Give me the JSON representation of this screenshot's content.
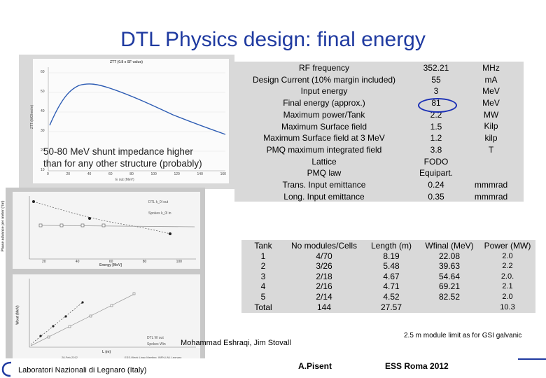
{
  "slide": {
    "title": "DTL Physics design: final energy",
    "note": "50-80 MeV shunt impedance higher than for any other structure (probably)",
    "authors": "Mohammad Eshraqi, Jim Stovall",
    "module_note": "2.5 m module limit as for GSI galvanic",
    "footer": {
      "lab": "Laboratori Nazionali di Legnaro (Italy)",
      "speaker": "A.Pisent",
      "event": "ESS Roma 2012"
    }
  },
  "plot_top": {
    "title": "ZTT (0.8 x SF value)",
    "ylabel": "ZTT (MOhm/m)",
    "xlabel": "E out (MeV)",
    "yticks": [
      "60",
      "50",
      "40",
      "30",
      "20",
      "10"
    ],
    "xticks": [
      "0",
      "20",
      "40",
      "60",
      "80",
      "100",
      "120",
      "140",
      "160"
    ]
  },
  "plot_bottom": {
    "upper": {
      "ylabel": "Phase advance per meter (°/m)",
      "xlabel": "Energy [MeV]",
      "xticks": [
        "20",
        "40",
        "60",
        "80",
        "100"
      ],
      "legend": [
        "DTL k_0l out",
        "Spokes k_0l in"
      ]
    },
    "lower": {
      "ylabel": "Wout (MeV)",
      "xlabel": "L (m)",
      "legend": [
        "DTL W out",
        "Spokes Win"
      ],
      "date": "28-Feb-2012",
      "meeting": "ESS-Week Linac Meeting, INFN-LNL Legnaro"
    }
  },
  "params": {
    "rows": [
      {
        "name": "RF frequency",
        "value": "352.21",
        "unit": "MHz"
      },
      {
        "name": "Design Current (10% margin included)",
        "value": "55",
        "unit": "mA"
      },
      {
        "name": "Input energy",
        "value": "3",
        "unit": "MeV"
      },
      {
        "name": "Final energy (approx.)",
        "value": "81",
        "unit": "MeV"
      },
      {
        "name": "Maximum power/Tank",
        "value": "2.2",
        "unit": "MW"
      },
      {
        "name": "Maximum Surface field",
        "value": "1.5",
        "unit": "Kilp"
      },
      {
        "name": "Maximum Surface field at 3 MeV",
        "value": "1.2",
        "unit": "kilp"
      },
      {
        "name": "PMQ maximum integrated field",
        "value": "3.8",
        "unit": "T"
      },
      {
        "name": "Lattice",
        "value": "FODO",
        "unit": ""
      },
      {
        "name": "PMQ law",
        "value": "Equipart.",
        "unit": ""
      },
      {
        "name": "Trans. Input emittance",
        "value": "0.24",
        "unit": "mmmrad"
      },
      {
        "name": "Long. Input emittance",
        "value": "0.35",
        "unit": "mmmrad"
      }
    ]
  },
  "tanks": {
    "headers": [
      "Tank",
      "No modules/Cells",
      "Length (m)",
      "Wfinal (MeV)",
      "Power (MW)"
    ],
    "tank": [
      "1",
      "2",
      "3",
      "4",
      "5",
      "Total"
    ],
    "modules": [
      "4/70",
      "3/26",
      "2/18",
      "2/16",
      "2/14",
      "144"
    ],
    "length": [
      "8.19",
      "5.48",
      "4.67",
      "4.71",
      "4.52",
      "27.57"
    ],
    "wfinal": [
      "22.08",
      "39.63",
      "54.64",
      "69.21",
      "82.52"
    ],
    "power": [
      "2.0",
      "2.2",
      "2.0.",
      "2.1",
      "2.0",
      "10.3"
    ]
  }
}
